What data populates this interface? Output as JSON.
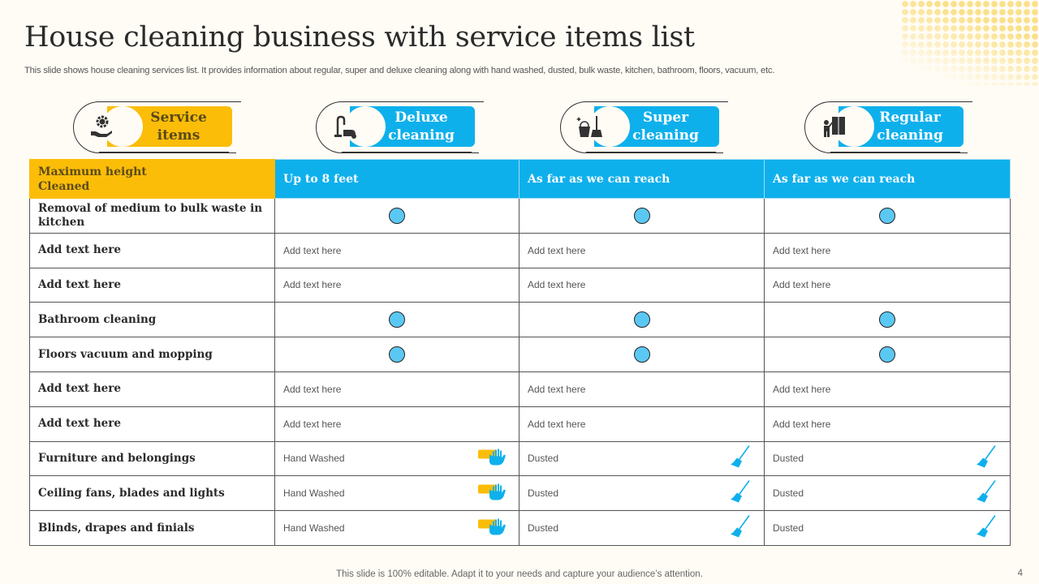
{
  "title": "House cleaning business with service items list",
  "subtitle": "This slide shows house cleaning services list. It provides information about regular, super and deluxe cleaning along with hand washed, dusted, bulk waste, kitchen, bathroom, floors, vacuum, etc.",
  "colors": {
    "accent_yellow": "#fbbd08",
    "accent_blue": "#0eb0ec",
    "dot": "#5bc8f4",
    "background": "#fffcf5"
  },
  "pills": [
    {
      "label_line1": "Service",
      "label_line2": "items",
      "icon": "hand-gear-icon"
    },
    {
      "label_line1": "Deluxe",
      "label_line2": "cleaning",
      "icon": "vacuum-cleaner-icon"
    },
    {
      "label_line1": "Super",
      "label_line2": "cleaning",
      "icon": "bucket-broom-icon"
    },
    {
      "label_line1": "Regular",
      "label_line2": "cleaning",
      "icon": "window-cleaner-icon"
    }
  ],
  "table": {
    "header": {
      "first_line1": "Maximum height",
      "first_line2": "Cleaned",
      "cols": [
        "Up to 8 feet",
        "As far as we can reach",
        "As far as we can reach"
      ]
    },
    "rows": [
      {
        "label": "Removal of medium to bulk waste in kitchen",
        "cells": [
          "dot",
          "dot",
          "dot"
        ]
      },
      {
        "label": "Add text here",
        "cells": [
          "Add text here",
          "Add text here",
          "Add text here"
        ]
      },
      {
        "label": "Add text here",
        "cells": [
          "Add text here",
          "Add text here",
          "Add text here"
        ]
      },
      {
        "label": "Bathroom cleaning",
        "cells": [
          "dot",
          "dot",
          "dot"
        ]
      },
      {
        "label": "Floors vacuum and mopping",
        "cells": [
          "dot",
          "dot",
          "dot"
        ]
      },
      {
        "label": "Add text here",
        "cells": [
          "Add text here",
          "Add text here",
          "Add text here"
        ]
      },
      {
        "label": "Add text here",
        "cells": [
          "Add text here",
          "Add text here",
          "Add text here"
        ]
      },
      {
        "label": "Furniture and belongings",
        "cells": [
          "Hand Washed",
          "Dusted",
          "Dusted"
        ],
        "icons": [
          "hand-sponge-icon",
          "broom-icon",
          "broom-icon"
        ]
      },
      {
        "label": "Ceiling fans, blades and lights",
        "cells": [
          "Hand Washed",
          "Dusted",
          "Dusted"
        ],
        "icons": [
          "hand-sponge-icon",
          "broom-icon",
          "broom-icon"
        ]
      },
      {
        "label": "Blinds, drapes and finials",
        "cells": [
          "Hand Washed",
          "Dusted",
          "Dusted"
        ],
        "icons": [
          "hand-sponge-icon",
          "broom-icon",
          "broom-icon"
        ]
      }
    ]
  },
  "footer": "This slide is 100% editable. Adapt it to your needs and capture your audience’s attention.",
  "page_number": "4"
}
